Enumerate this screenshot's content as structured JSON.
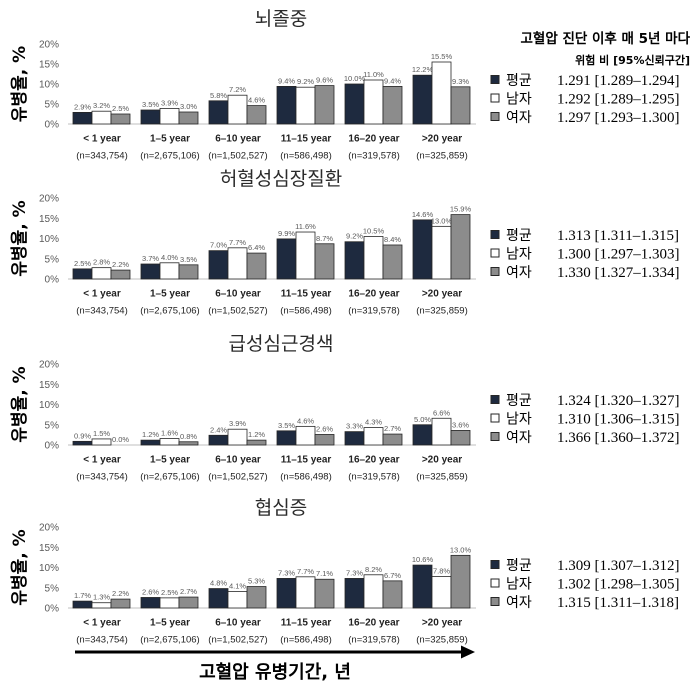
{
  "header": {
    "title": "고혈압 진단 이후 매 5년 마다",
    "subtitle": "위험 비 [95%신뢰구간]"
  },
  "x_axis_title": "고혈압 유병기간, 년",
  "series_colors": {
    "평균": "#1e2a3f",
    "남자": "#ffffff",
    "여자": "#8c8c8c",
    "outline": "#262626",
    "axis_line": "#bfbfbf"
  },
  "chart_data": [
    {
      "type": "bar",
      "title": "뇌졸중",
      "ylabel": "유병율, %",
      "ylim": [
        0,
        20
      ],
      "yticks": [
        20,
        15,
        10,
        5,
        0
      ],
      "ytick_labels": [
        "20%",
        "15%",
        "10%",
        "5%",
        "0%"
      ],
      "grid": false,
      "legend": "right",
      "categories": [
        "< 1 year",
        "1–5 year",
        "6–10 year",
        "11–15 year",
        "16–20 year",
        ">20 year"
      ],
      "category_counts": [
        "(n=343,754)",
        "(n=2,675,106)",
        "(n=1,502,527)",
        "(n=586,498)",
        "(n=319,578)",
        "(n=325,859)"
      ],
      "series": [
        {
          "name": "평균",
          "values": [
            2.9,
            3.5,
            5.8,
            9.4,
            10.0,
            12.2
          ],
          "labels": [
            "2.9%",
            "3.5%",
            "5.8%",
            "9.4%",
            "10.0%",
            "12.2%"
          ],
          "hazard_ratio": "1.291 [1.289–1.294]"
        },
        {
          "name": "남자",
          "values": [
            3.2,
            3.9,
            7.2,
            9.2,
            11.0,
            15.5
          ],
          "labels": [
            "3.2%",
            "3.9%",
            "7.2%",
            "9.2%",
            "11.0%",
            "15.5%"
          ],
          "hazard_ratio": "1.292 [1.289–1.295]"
        },
        {
          "name": "여자",
          "values": [
            2.5,
            3.0,
            4.6,
            9.6,
            9.4,
            9.3
          ],
          "labels": [
            "2.5%",
            "3.0%",
            "4.6%",
            "9.6%",
            "9.4%",
            "9.3%"
          ],
          "hazard_ratio": "1.297 [1.293–1.300]"
        }
      ]
    },
    {
      "type": "bar",
      "title": "허혈성심장질환",
      "ylabel": "유병율, %",
      "ylim": [
        0,
        20
      ],
      "yticks": [
        20,
        15,
        10,
        5,
        0
      ],
      "ytick_labels": [
        "20%",
        "15%",
        "10%",
        "5%",
        "0%"
      ],
      "grid": false,
      "legend": "right",
      "categories": [
        "< 1 year",
        "1–5 year",
        "6–10 year",
        "11–15 year",
        "16–20 year",
        ">20 year"
      ],
      "category_counts": [
        "(n=343,754)",
        "(n=2,675,106)",
        "(n=1,502,527)",
        "(n=586,498)",
        "(n=319,578)",
        "(n=325,859)"
      ],
      "series": [
        {
          "name": "평균",
          "values": [
            2.5,
            3.7,
            7.0,
            9.9,
            9.2,
            14.6
          ],
          "labels": [
            "2.5%",
            "3.7%",
            "7.0%",
            "9.9%",
            "9.2%",
            "14.6%"
          ],
          "hazard_ratio": "1.313 [1.311–1.315]"
        },
        {
          "name": "남자",
          "values": [
            2.8,
            4.0,
            7.7,
            11.6,
            10.5,
            13.0
          ],
          "labels": [
            "2.8%",
            "4.0%",
            "7.7%",
            "11.6%",
            "10.5%",
            "13.0%"
          ],
          "hazard_ratio": "1.300 [1.297–1.303]"
        },
        {
          "name": "여자",
          "values": [
            2.2,
            3.5,
            6.4,
            8.7,
            8.4,
            15.9
          ],
          "labels": [
            "2.2%",
            "3.5%",
            "6.4%",
            "8.7%",
            "8.4%",
            "15.9%"
          ],
          "hazard_ratio": "1.330 [1.327–1.334]"
        }
      ]
    },
    {
      "type": "bar",
      "title": "급성심근경색",
      "ylabel": "유병율, %",
      "ylim": [
        0,
        20
      ],
      "yticks": [
        20,
        15,
        10,
        5,
        0
      ],
      "ytick_labels": [
        "20%",
        "15%",
        "10%",
        "5%",
        "0%"
      ],
      "grid": false,
      "legend": "right",
      "categories": [
        "< 1 year",
        "1–5 year",
        "6–10 year",
        "11–15 year",
        "16–20 year",
        ">20 year"
      ],
      "category_counts": [
        "(n=343,754)",
        "(n=2,675,106)",
        "(n=1,502,527)",
        "(n=586,498)",
        "(n=319,578)",
        "(n=325,859)"
      ],
      "series": [
        {
          "name": "평균",
          "values": [
            0.9,
            1.2,
            2.4,
            3.5,
            3.3,
            5.0
          ],
          "labels": [
            "0.9%",
            "1.2%",
            "2.4%",
            "3.5%",
            "3.3%",
            "5.0%"
          ],
          "hazard_ratio": "1.324 [1.320–1.327]"
        },
        {
          "name": "남자",
          "values": [
            1.5,
            1.6,
            3.9,
            4.6,
            4.3,
            6.6
          ],
          "labels": [
            "1.5%",
            "1.6%",
            "3.9%",
            "4.6%",
            "4.3%",
            "6.6%"
          ],
          "hazard_ratio": "1.310 [1.306–1.315]"
        },
        {
          "name": "여자",
          "values": [
            0.0,
            0.8,
            1.2,
            2.6,
            2.7,
            3.6
          ],
          "labels": [
            "0.0%",
            "0.8%",
            "1.2%",
            "2.6%",
            "2.7%",
            "3.6%"
          ],
          "hazard_ratio": "1.366 [1.360–1.372]"
        }
      ]
    },
    {
      "type": "bar",
      "title": "협심증",
      "ylabel": "유병율, %",
      "ylim": [
        0,
        20
      ],
      "yticks": [
        20,
        15,
        10,
        5,
        0
      ],
      "ytick_labels": [
        "20%",
        "15%",
        "10%",
        "5%",
        "0%"
      ],
      "grid": false,
      "legend": "right",
      "categories": [
        "< 1 year",
        "1–5 year",
        "6–10 year",
        "11–15 year",
        "16–20 year",
        ">20 year"
      ],
      "category_counts": [
        "(n=343,754)",
        "(n=2,675,106)",
        "(n=1,502,527)",
        "(n=586,498)",
        "(n=319,578)",
        "(n=325,859)"
      ],
      "series": [
        {
          "name": "평균",
          "values": [
            1.7,
            2.6,
            4.8,
            7.3,
            7.3,
            10.6
          ],
          "labels": [
            "1.7%",
            "2.6%",
            "4.8%",
            "7.3%",
            "7.3%",
            "10.6%"
          ],
          "hazard_ratio": "1.309 [1.307–1.312]"
        },
        {
          "name": "남자",
          "values": [
            1.3,
            2.5,
            4.1,
            7.7,
            8.2,
            7.8
          ],
          "labels": [
            "1.3%",
            "2.5%",
            "4.1%",
            "7.7%",
            "8.2%",
            "7.8%"
          ],
          "hazard_ratio": "1.302 [1.298–1.305]"
        },
        {
          "name": "여자",
          "values": [
            2.2,
            2.7,
            5.3,
            7.1,
            6.7,
            13.0
          ],
          "labels": [
            "2.2%",
            "2.7%",
            "5.3%",
            "7.1%",
            "6.7%",
            "13.0%"
          ],
          "hazard_ratio": "1.315 [1.311–1.318]"
        }
      ]
    }
  ]
}
